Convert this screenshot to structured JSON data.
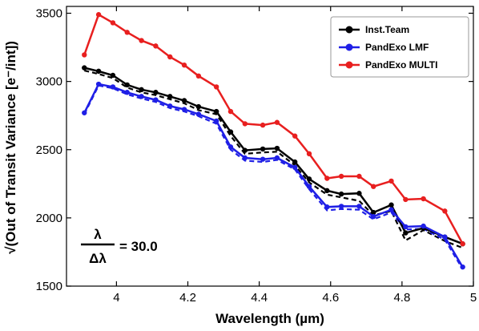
{
  "chart_data": {
    "type": "line",
    "title": "",
    "xlabel": "Wavelength (µm)",
    "ylabel": "√(Out of Transit Variance [e⁻/int])",
    "xlim": [
      3.86,
      5.0
    ],
    "ylim": [
      1500,
      3550
    ],
    "x_ticks": [
      4,
      4.2,
      4.4,
      4.6,
      4.8,
      5
    ],
    "x_tick_labels": [
      "4",
      "4.2",
      "4.4",
      "4.6",
      "4.8",
      "5"
    ],
    "y_ticks": [
      1500,
      2000,
      2500,
      3000,
      3500
    ],
    "y_tick_labels": [
      "1500",
      "2000",
      "2500",
      "3000",
      "3500"
    ],
    "grid": false,
    "legend_position": "top-right",
    "x": [
      3.91,
      3.95,
      3.99,
      4.03,
      4.07,
      4.11,
      4.15,
      4.19,
      4.23,
      4.28,
      4.32,
      4.36,
      4.41,
      4.45,
      4.5,
      4.54,
      4.59,
      4.63,
      4.68,
      4.72,
      4.77,
      4.81,
      4.86,
      4.92,
      4.97
    ],
    "series": [
      {
        "name": "Inst.Team",
        "color": "#000000",
        "values": [
          3100,
          3075,
          3045,
          2975,
          2940,
          2920,
          2890,
          2860,
          2815,
          2780,
          2630,
          2495,
          2505,
          2510,
          2410,
          2285,
          2200,
          2175,
          2180,
          2040,
          2095,
          1890,
          1925,
          1860,
          1810
        ]
      },
      {
        "name": "PandExo LMF",
        "color": "#1f1fe6",
        "values": [
          2770,
          2980,
          2960,
          2920,
          2890,
          2865,
          2820,
          2795,
          2760,
          2710,
          2520,
          2440,
          2430,
          2440,
          2370,
          2230,
          2080,
          2085,
          2085,
          2010,
          2060,
          1935,
          1940,
          1860,
          1640
        ]
      },
      {
        "name": "PandExo MULTI",
        "color": "#e81f1f",
        "values": [
          3195,
          3490,
          3430,
          3360,
          3300,
          3260,
          3180,
          3120,
          3040,
          2960,
          2780,
          2690,
          2680,
          2700,
          2600,
          2470,
          2290,
          2305,
          2305,
          2230,
          2270,
          2135,
          2140,
          2050,
          1810
        ]
      }
    ],
    "dashed_overlays": [
      {
        "color": "#000000",
        "values": [
          3080,
          3055,
          3025,
          2955,
          2920,
          2900,
          2870,
          2840,
          2790,
          2760,
          2600,
          2470,
          2480,
          2485,
          2385,
          2260,
          2170,
          2150,
          2125,
          2020,
          2050,
          1835,
          1910,
          1830,
          1780
        ]
      },
      {
        "color": "#1f1fe6",
        "values": [
          2760,
          2970,
          2950,
          2905,
          2875,
          2850,
          2805,
          2780,
          2745,
          2690,
          2500,
          2420,
          2410,
          2425,
          2355,
          2210,
          2055,
          2065,
          2060,
          1990,
          2040,
          1915,
          1920,
          1840,
          1625
        ]
      }
    ],
    "annotation": {
      "numerator": "λ",
      "denominator": "Δλ",
      "text": "= 30.0"
    }
  }
}
